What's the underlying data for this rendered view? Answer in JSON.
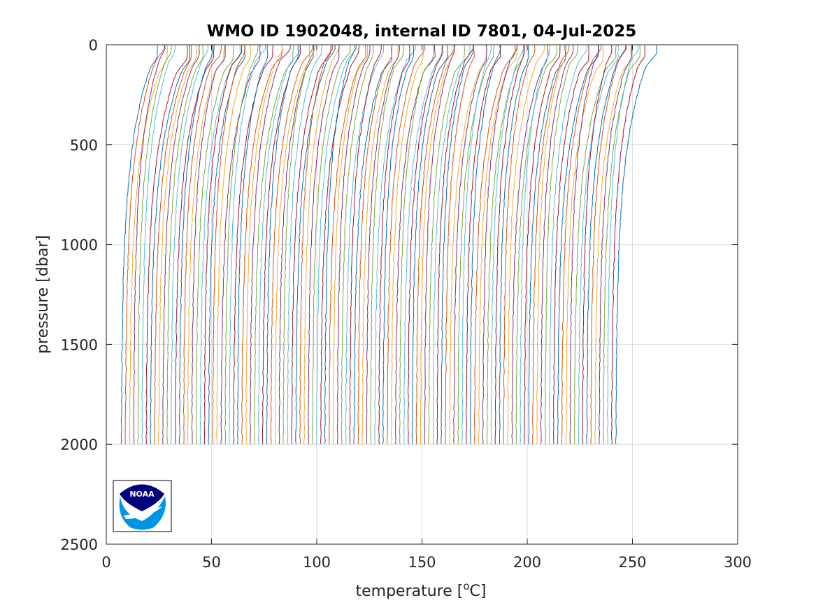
{
  "chart_data": {
    "type": "line",
    "title": "WMO ID 1902048, internal ID 7801, 04-Jul-2025",
    "xlabel_main": "temperature [",
    "xlabel_sup": "o",
    "xlabel_end": "C]",
    "ylabel": "pressure [dbar]",
    "xlim": [
      0,
      300
    ],
    "ylim": [
      0,
      2500
    ],
    "y_reversed": true,
    "grid": true,
    "x_ticks": [
      0,
      50,
      100,
      150,
      200,
      250,
      300
    ],
    "y_ticks": [
      0,
      500,
      1000,
      1500,
      2000,
      2500
    ],
    "x_tick_labels": [
      "0",
      "50",
      "100",
      "150",
      "200",
      "250",
      "300"
    ],
    "y_tick_labels": [
      "0",
      "500",
      "1000",
      "1500",
      "2000",
      "2500"
    ],
    "series_layout": {
      "count": 120,
      "first_deep_temperature": 7,
      "last_deep_temperature": 242,
      "typical_profile_span": 15,
      "max_pressure": 2000
    },
    "logo": {
      "name": "noaa-logo",
      "text": "NOAA"
    },
    "colors": [
      "#0072BD",
      "#D95319",
      "#EDB120",
      "#7E2F8E",
      "#77AC30",
      "#4DBEEE",
      "#A2142F"
    ]
  }
}
